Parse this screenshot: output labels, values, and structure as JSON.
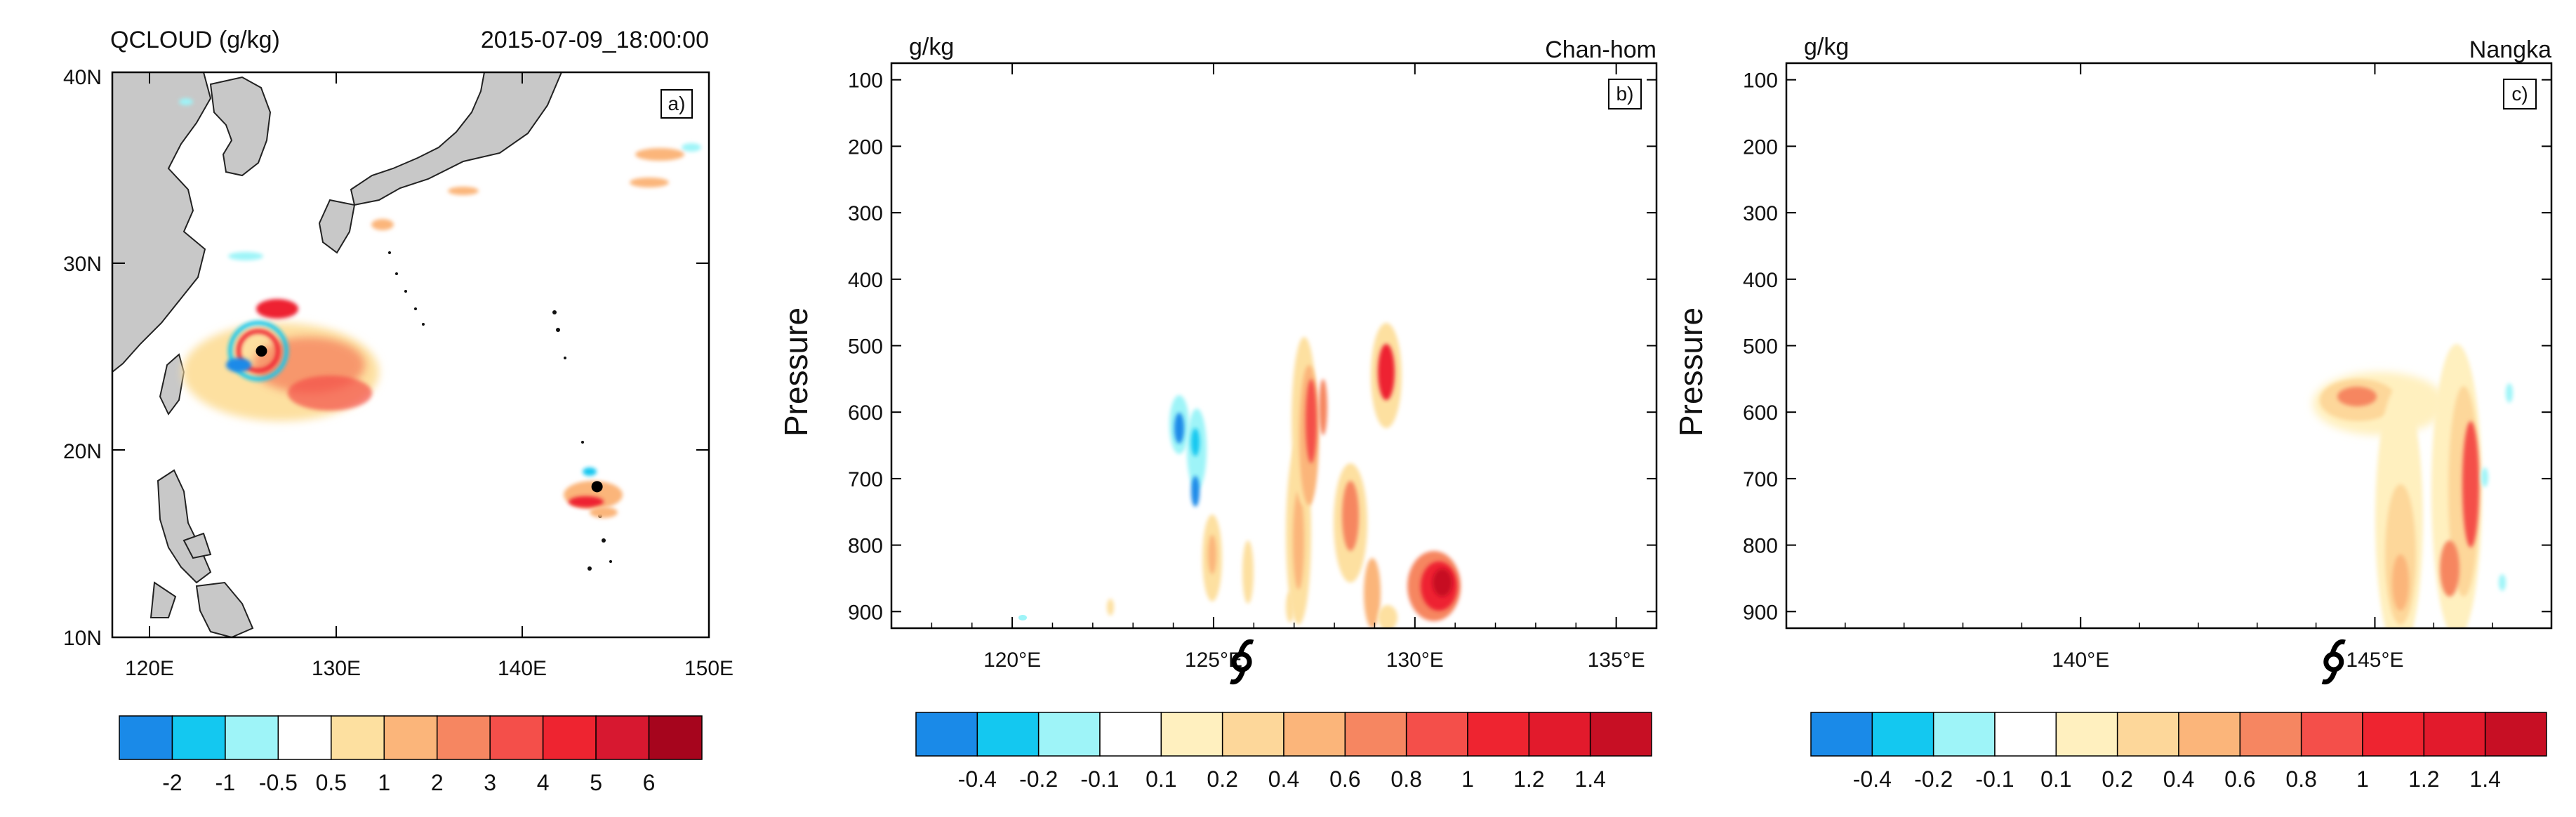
{
  "chart_data": [
    {
      "id": "a",
      "type": "map",
      "title_left": "QCLOUD (g/kg)",
      "title_right": "2015-07-09_18:00:00",
      "panel_label": "a)",
      "x_ticks": [
        "120E",
        "130E",
        "140E",
        "150E"
      ],
      "y_ticks": [
        "40N",
        "30N",
        "20N",
        "10N"
      ],
      "xlim": [
        118,
        150
      ],
      "ylim": [
        10,
        40
      ],
      "colorbar": {
        "colors": [
          "#1a8ae8",
          "#14c8f0",
          "#9ef4f8",
          "#ffffff",
          "#fde0a0",
          "#fbb57a",
          "#f68661",
          "#f44f4a",
          "#ee2430",
          "#d71830",
          "#a6051d"
        ],
        "labels": [
          "-2",
          "-1",
          "-0.5",
          "0.5",
          "1",
          "2",
          "3",
          "4",
          "5",
          "6"
        ]
      },
      "typhoon_centers": [
        {
          "lon": 126.0,
          "lat": 25.2
        },
        {
          "lon": 144.0,
          "lat": 18.0
        }
      ]
    },
    {
      "id": "b",
      "type": "heatmap",
      "ylabel": "Pressure",
      "units": "g/kg",
      "storm": "Chan-hom",
      "panel_label": "b)",
      "x_ticks": [
        "120°E",
        "125°E",
        "130°E",
        "135°E"
      ],
      "xlim": [
        117,
        136
      ],
      "y_ticks": [
        "100",
        "200",
        "300",
        "400",
        "500",
        "600",
        "700",
        "800",
        "900"
      ],
      "ylim": [
        75,
        925
      ],
      "typhoon_marker_lon": 125.7,
      "colorbar": {
        "colors": [
          "#1a8ae8",
          "#14c8f0",
          "#9ef4f8",
          "#ffffff",
          "#fff0bf",
          "#fdd79a",
          "#fbb57a",
          "#f68661",
          "#f44f4a",
          "#ee2430",
          "#e21a2c",
          "#c70f24"
        ],
        "labels": [
          "-0.4",
          "-0.2",
          "-0.1",
          "0.1",
          "0.2",
          "0.4",
          "0.6",
          "0.8",
          "1",
          "1.2",
          "1.4"
        ]
      }
    },
    {
      "id": "c",
      "type": "heatmap",
      "ylabel": "Pressure",
      "units": "g/kg",
      "storm": "Nangka",
      "panel_label": "c)",
      "x_ticks": [
        "140°E",
        "145°E"
      ],
      "xlim": [
        135,
        148
      ],
      "y_ticks": [
        "100",
        "200",
        "300",
        "400",
        "500",
        "600",
        "700",
        "800",
        "900"
      ],
      "ylim": [
        75,
        925
      ],
      "typhoon_marker_lon": 144.3,
      "colorbar": {
        "colors": [
          "#1a8ae8",
          "#14c8f0",
          "#9ef4f8",
          "#ffffff",
          "#fff0bf",
          "#fdd79a",
          "#fbb57a",
          "#f68661",
          "#f44f4a",
          "#ee2430",
          "#e21a2c",
          "#c70f24"
        ],
        "labels": [
          "-0.4",
          "-0.2",
          "-0.1",
          "0.1",
          "0.2",
          "0.4",
          "0.6",
          "0.8",
          "1",
          "1.2",
          "1.4"
        ]
      }
    }
  ]
}
